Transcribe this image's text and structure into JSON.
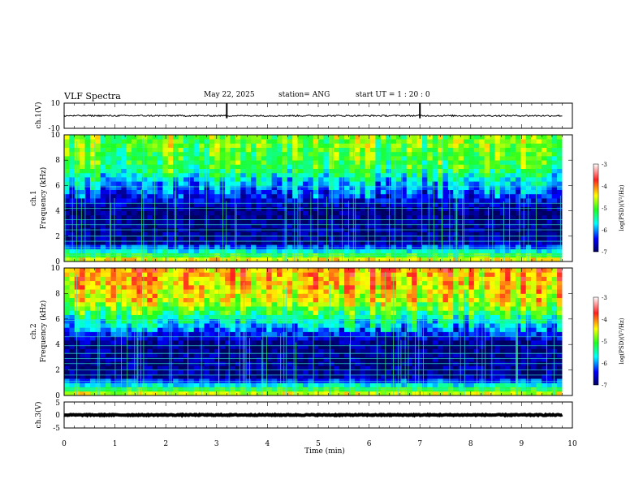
{
  "header": {
    "title": "VLF Spectra",
    "date": "May 22, 2025",
    "station": "station= ANG",
    "start_ut": "start  UT =   1 : 20 : 0"
  },
  "chart_data": [
    {
      "type": "line",
      "panel": "ch1-waveform",
      "ylabel": "ch.1(V)",
      "ylim": [
        -10,
        10
      ],
      "yticks": [
        "10",
        "-10"
      ],
      "series": [
        {
          "baseline": 0,
          "noise_amplitude": 0.6,
          "spike_times_min": [
            3.2,
            7.0
          ]
        }
      ]
    },
    {
      "type": "heatmap",
      "panel": "ch1-spectrogram",
      "ylabel": "ch.1\nFrequency  (kHz)",
      "ylim": [
        0,
        10
      ],
      "yticks": [
        "0",
        "2",
        "4",
        "6",
        "8",
        "10"
      ],
      "xlim": [
        0,
        10
      ],
      "colorbar": {
        "label": "log(PSD)(V²/Hz)",
        "ticks": [
          "-3",
          "-4",
          "-5",
          "-6",
          "-7"
        ],
        "range": [
          -7,
          -3
        ]
      },
      "intensity_profile": [
        {
          "freq_khz": 0.2,
          "log_psd": -4.5
        },
        {
          "freq_khz": 1.5,
          "log_psd": -6.8
        },
        {
          "freq_khz": 4.0,
          "log_psd": -6.9
        },
        {
          "freq_khz": 6.0,
          "log_psd": -6.0
        },
        {
          "freq_khz": 7.5,
          "log_psd": -5.2
        },
        {
          "freq_khz": 10.0,
          "log_psd": -4.9
        }
      ],
      "narrowband_lines_khz": [
        0.5,
        1.1,
        1.6,
        2.0,
        2.5,
        2.9,
        3.3,
        4.2,
        4.6,
        5.9
      ],
      "data_end_min": 9.8
    },
    {
      "type": "heatmap",
      "panel": "ch2-spectrogram",
      "ylabel": "ch.2\nFrequency  (kHz)",
      "ylim": [
        0,
        10
      ],
      "yticks": [
        "0",
        "2",
        "4",
        "6",
        "8",
        "10"
      ],
      "xlim": [
        0,
        10
      ],
      "colorbar": {
        "label": "log(PSD)(V²/Hz)",
        "ticks": [
          "-3",
          "-4",
          "-5",
          "-6",
          "-7"
        ],
        "range": [
          -7,
          -3
        ]
      },
      "intensity_profile": [
        {
          "freq_khz": 0.2,
          "log_psd": -4.6
        },
        {
          "freq_khz": 1.5,
          "log_psd": -6.8
        },
        {
          "freq_khz": 4.0,
          "log_psd": -6.9
        },
        {
          "freq_khz": 6.0,
          "log_psd": -5.6
        },
        {
          "freq_khz": 7.5,
          "log_psd": -4.6
        },
        {
          "freq_khz": 10.0,
          "log_psd": -4.2
        }
      ],
      "narrowband_lines_khz": [
        0.5,
        1.1,
        1.6,
        2.0,
        2.5,
        2.9,
        3.3,
        3.9,
        4.6,
        5.9
      ],
      "data_end_min": 9.8
    },
    {
      "type": "line",
      "panel": "ch3-waveform",
      "ylabel": "ch.3(V)",
      "ylim": [
        -5,
        5
      ],
      "yticks": [
        "5",
        "0",
        "-5"
      ],
      "series": [
        {
          "baseline": 0,
          "noise_amplitude": 0.2
        }
      ]
    }
  ],
  "xaxis": {
    "label": "Time  (min)",
    "ticks": [
      "0",
      "1",
      "2",
      "3",
      "4",
      "5",
      "6",
      "7",
      "8",
      "9",
      "10"
    ],
    "xlim": [
      0,
      10
    ]
  }
}
